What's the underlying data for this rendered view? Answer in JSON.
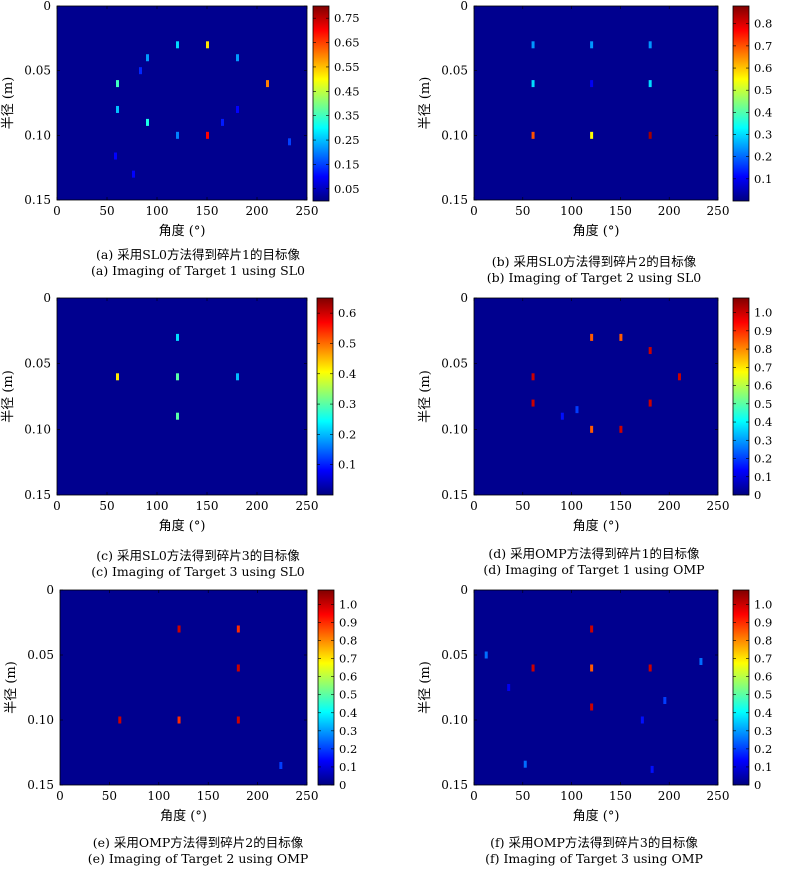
{
  "chart_data": [
    {
      "type": "heatmap",
      "xlabel": "角度 (°)",
      "ylabel": "半径 (m)",
      "xlim": [
        0,
        250
      ],
      "ylim": [
        0.15,
        0
      ],
      "xticks": [
        "0",
        "50",
        "100",
        "150",
        "200",
        "250"
      ],
      "yticks": [
        "0",
        "0.05",
        "0.10",
        "0.15"
      ],
      "colorbar_ticks": [
        "0.05",
        "0.15",
        "0.25",
        "0.35",
        "0.45",
        "0.55",
        "0.65",
        "0.75"
      ],
      "clim": [
        0,
        0.8
      ],
      "points": [
        {
          "x": 120,
          "y": 0.03,
          "v": 0.27
        },
        {
          "x": 150,
          "y": 0.03,
          "v": 0.52
        },
        {
          "x": 90,
          "y": 0.04,
          "v": 0.22
        },
        {
          "x": 180,
          "y": 0.04,
          "v": 0.22
        },
        {
          "x": 83,
          "y": 0.05,
          "v": 0.13
        },
        {
          "x": 60,
          "y": 0.06,
          "v": 0.35
        },
        {
          "x": 210,
          "y": 0.06,
          "v": 0.6
        },
        {
          "x": 60,
          "y": 0.08,
          "v": 0.25
        },
        {
          "x": 180,
          "y": 0.08,
          "v": 0.1
        },
        {
          "x": 90,
          "y": 0.09,
          "v": 0.32
        },
        {
          "x": 165,
          "y": 0.09,
          "v": 0.12
        },
        {
          "x": 120,
          "y": 0.1,
          "v": 0.2
        },
        {
          "x": 150,
          "y": 0.1,
          "v": 0.7
        },
        {
          "x": 232,
          "y": 0.105,
          "v": 0.15
        },
        {
          "x": 58,
          "y": 0.116,
          "v": 0.1
        },
        {
          "x": 76,
          "y": 0.13,
          "v": 0.1
        }
      ]
    },
    {
      "type": "heatmap",
      "xlabel": "角度 (°)",
      "ylabel": "半径 (m)",
      "xlim": [
        0,
        250
      ],
      "ylim": [
        0.15,
        0
      ],
      "xticks": [
        "0",
        "50",
        "100",
        "150",
        "200",
        "250"
      ],
      "yticks": [
        "0",
        "0.05",
        "0.10",
        "0.15"
      ],
      "colorbar_ticks": [
        "0.1",
        "0.2",
        "0.3",
        "0.4",
        "0.5",
        "0.6",
        "0.7",
        "0.8"
      ],
      "clim": [
        0,
        0.88
      ],
      "points": [
        {
          "x": 60,
          "y": 0.03,
          "v": 0.24
        },
        {
          "x": 120,
          "y": 0.03,
          "v": 0.24
        },
        {
          "x": 180,
          "y": 0.03,
          "v": 0.24
        },
        {
          "x": 60,
          "y": 0.06,
          "v": 0.3
        },
        {
          "x": 120,
          "y": 0.06,
          "v": 0.1
        },
        {
          "x": 180,
          "y": 0.06,
          "v": 0.3
        },
        {
          "x": 60,
          "y": 0.1,
          "v": 0.7
        },
        {
          "x": 120,
          "y": 0.1,
          "v": 0.55
        },
        {
          "x": 180,
          "y": 0.1,
          "v": 0.85
        }
      ]
    },
    {
      "type": "heatmap",
      "xlabel": "角度 (°)",
      "ylabel": "半径 (m)",
      "xlim": [
        0,
        250
      ],
      "ylim": [
        0.15,
        0
      ],
      "xticks": [
        "0",
        "50",
        "100",
        "150",
        "200",
        "250"
      ],
      "yticks": [
        "0",
        "0.05",
        "0.10",
        "0.15"
      ],
      "colorbar_ticks": [
        "0.1",
        "0.2",
        "0.3",
        "0.4",
        "0.5",
        "0.6"
      ],
      "clim": [
        0,
        0.65
      ],
      "points": [
        {
          "x": 120,
          "y": 0.03,
          "v": 0.22
        },
        {
          "x": 60,
          "y": 0.06,
          "v": 0.42
        },
        {
          "x": 120,
          "y": 0.06,
          "v": 0.3
        },
        {
          "x": 180,
          "y": 0.06,
          "v": 0.2
        },
        {
          "x": 120,
          "y": 0.09,
          "v": 0.3
        }
      ]
    },
    {
      "type": "heatmap",
      "xlabel": "角度 (°)",
      "ylabel": "半径 (m)",
      "xlim": [
        0,
        250
      ],
      "ylim": [
        0.15,
        0
      ],
      "xticks": [
        "0",
        "50",
        "100",
        "150",
        "200",
        "250"
      ],
      "yticks": [
        "0",
        "0.05",
        "0.10",
        "0.15"
      ],
      "colorbar_ticks": [
        "0",
        "0.1",
        "0.2",
        "0.3",
        "0.4",
        "0.5",
        "0.6",
        "0.7",
        "0.8",
        "0.9",
        "1.0"
      ],
      "clim": [
        0,
        1.08
      ],
      "points": [
        {
          "x": 120,
          "y": 0.03,
          "v": 0.85
        },
        {
          "x": 150,
          "y": 0.03,
          "v": 0.85
        },
        {
          "x": 180,
          "y": 0.04,
          "v": 1.0
        },
        {
          "x": 60,
          "y": 0.06,
          "v": 1.0
        },
        {
          "x": 210,
          "y": 0.06,
          "v": 1.0
        },
        {
          "x": 60,
          "y": 0.08,
          "v": 1.0
        },
        {
          "x": 180,
          "y": 0.08,
          "v": 1.0
        },
        {
          "x": 105,
          "y": 0.085,
          "v": 0.2
        },
        {
          "x": 90,
          "y": 0.09,
          "v": 0.15
        },
        {
          "x": 120,
          "y": 0.1,
          "v": 0.85
        },
        {
          "x": 150,
          "y": 0.1,
          "v": 1.0
        }
      ]
    },
    {
      "type": "heatmap",
      "xlabel": "角度 (°)",
      "ylabel": "半径 (m)",
      "xlim": [
        0,
        250
      ],
      "ylim": [
        0.15,
        0
      ],
      "xticks": [
        "0",
        "50",
        "100",
        "150",
        "200",
        "250"
      ],
      "yticks": [
        "0",
        "0.05",
        "0.10",
        "0.15"
      ],
      "colorbar_ticks": [
        "0",
        "0.1",
        "0.2",
        "0.3",
        "0.4",
        "0.5",
        "0.6",
        "0.7",
        "0.8",
        "0.9",
        "1.0"
      ],
      "clim": [
        0,
        1.08
      ],
      "points": [
        {
          "x": 120,
          "y": 0.03,
          "v": 1.0
        },
        {
          "x": 180,
          "y": 0.03,
          "v": 0.9
        },
        {
          "x": 180,
          "y": 0.06,
          "v": 1.0
        },
        {
          "x": 60,
          "y": 0.1,
          "v": 1.0
        },
        {
          "x": 120,
          "y": 0.1,
          "v": 0.9
        },
        {
          "x": 180,
          "y": 0.1,
          "v": 1.0
        },
        {
          "x": 223,
          "y": 0.135,
          "v": 0.2
        }
      ]
    },
    {
      "type": "heatmap",
      "xlabel": "角度 (°)",
      "ylabel": "半径 (m)",
      "xlim": [
        0,
        250
      ],
      "ylim": [
        0.15,
        0
      ],
      "xticks": [
        "0",
        "50",
        "100",
        "150",
        "200",
        "250"
      ],
      "yticks": [
        "0",
        "0.05",
        "0.10",
        "0.15"
      ],
      "colorbar_ticks": [
        "0",
        "0.1",
        "0.2",
        "0.3",
        "0.4",
        "0.5",
        "0.6",
        "0.7",
        "0.8",
        "0.9",
        "1.0"
      ],
      "clim": [
        0,
        1.08
      ],
      "points": [
        {
          "x": 120,
          "y": 0.03,
          "v": 1.0
        },
        {
          "x": 12,
          "y": 0.05,
          "v": 0.25
        },
        {
          "x": 232,
          "y": 0.055,
          "v": 0.25
        },
        {
          "x": 60,
          "y": 0.06,
          "v": 1.0
        },
        {
          "x": 120,
          "y": 0.06,
          "v": 0.85
        },
        {
          "x": 180,
          "y": 0.06,
          "v": 1.0
        },
        {
          "x": 35,
          "y": 0.075,
          "v": 0.12
        },
        {
          "x": 195,
          "y": 0.085,
          "v": 0.2
        },
        {
          "x": 120,
          "y": 0.09,
          "v": 1.0
        },
        {
          "x": 172,
          "y": 0.1,
          "v": 0.15
        },
        {
          "x": 52,
          "y": 0.134,
          "v": 0.25
        },
        {
          "x": 182,
          "y": 0.138,
          "v": 0.15
        }
      ]
    }
  ],
  "captions": [
    {
      "zh": "(a) 采用SL0方法得到碎片1的目标像",
      "en": "(a) Imaging of Target 1 using SL0"
    },
    {
      "zh": "(b) 采用SL0方法得到碎片2的目标像",
      "en": "(b) Imaging of Target 2 using SL0"
    },
    {
      "zh": "(c) 采用SL0方法得到碎片3的目标像",
      "en": "(c) Imaging of Target 3 using SL0"
    },
    {
      "zh": "(d) 采用OMP方法得到碎片1的目标像",
      "en": "(d) Imaging of Target 1 using OMP"
    },
    {
      "zh": "(e) 采用OMP方法得到碎片2的目标像",
      "en": "(e) Imaging of Target 2 using OMP"
    },
    {
      "zh": "(f) 采用OMP方法得到碎片3的目标像",
      "en": "(f) Imaging of Target 3 using OMP"
    }
  ],
  "colors": {
    "background": "#00008f",
    "colormap": "jet"
  }
}
